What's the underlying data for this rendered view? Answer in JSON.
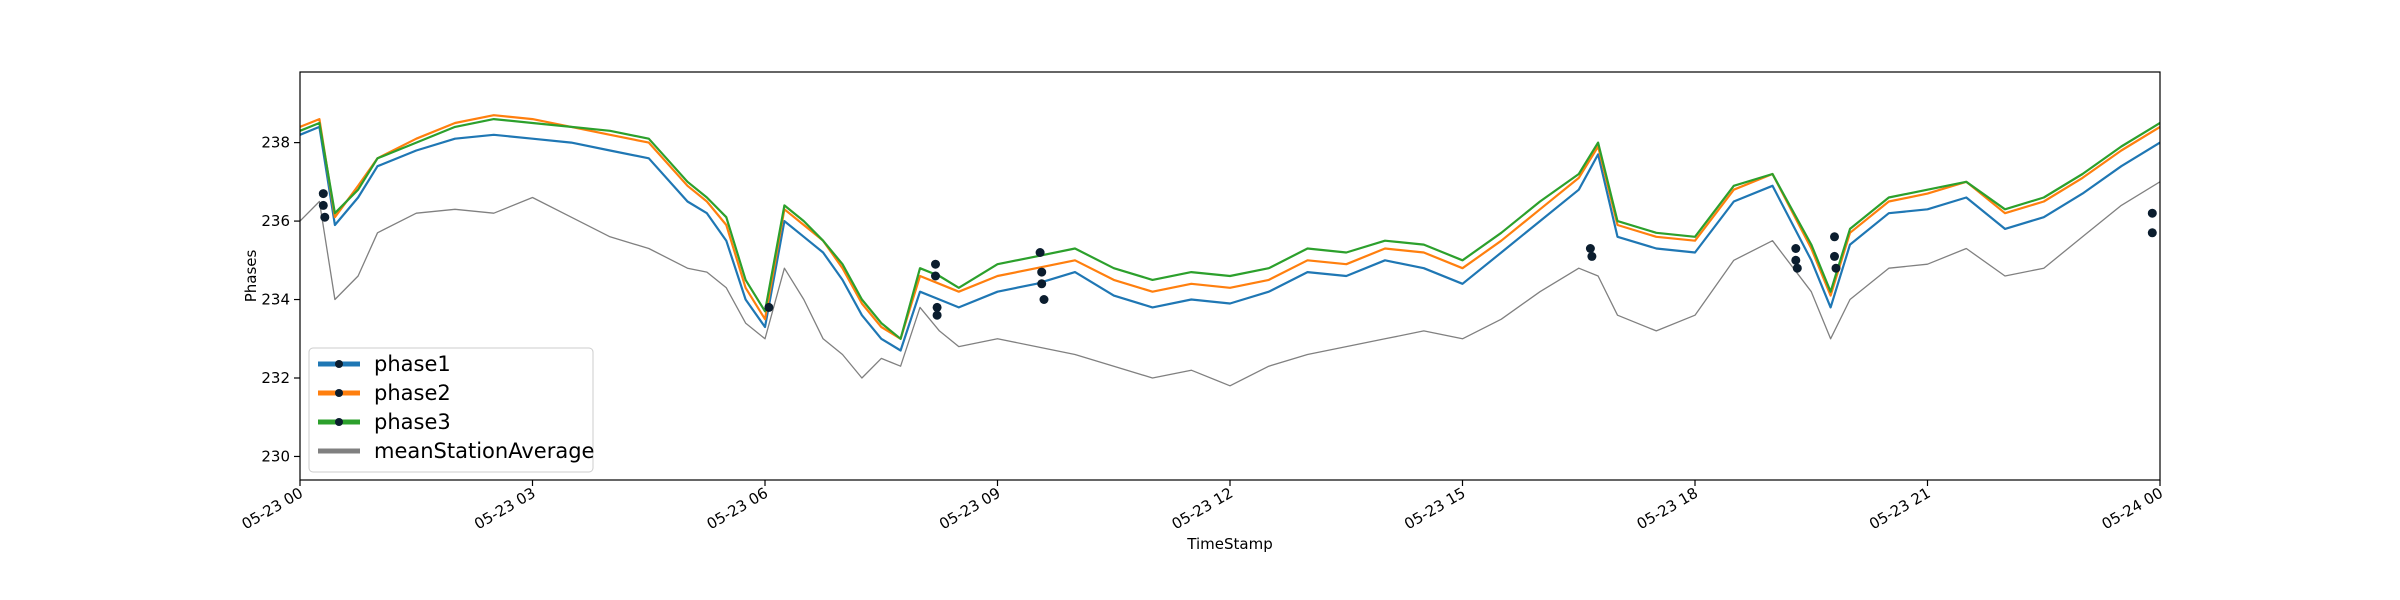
{
  "chart_data": {
    "type": "line",
    "title": "",
    "xlabel": "TimeStamp",
    "ylabel": "Phases",
    "x_range": [
      "05-23 00",
      "05-24 00"
    ],
    "ylim": [
      229.4,
      239.8
    ],
    "grid": false,
    "legend_position": "lower-left",
    "x_tick_labels": [
      "05-23 00",
      "05-23 03",
      "05-23 06",
      "05-23 09",
      "05-23 12",
      "05-23 15",
      "05-23 18",
      "05-23 21",
      "05-24 00"
    ],
    "x_tick_hours": [
      0,
      3,
      6,
      9,
      12,
      15,
      18,
      21,
      24
    ],
    "y_ticks": [
      230,
      232,
      234,
      236,
      238
    ],
    "x_hours": [
      0.0,
      0.25,
      0.45,
      0.75,
      1.0,
      1.5,
      2.0,
      2.5,
      3.0,
      3.5,
      4.0,
      4.5,
      5.0,
      5.25,
      5.5,
      5.75,
      6.0,
      6.25,
      6.5,
      6.75,
      7.0,
      7.25,
      7.5,
      7.75,
      8.0,
      8.25,
      8.5,
      9.0,
      9.5,
      10.0,
      10.5,
      11.0,
      11.5,
      12.0,
      12.5,
      13.0,
      13.5,
      14.0,
      14.5,
      15.0,
      15.5,
      16.0,
      16.5,
      16.75,
      17.0,
      17.5,
      18.0,
      18.5,
      19.0,
      19.5,
      19.75,
      20.0,
      20.5,
      21.0,
      21.5,
      22.0,
      22.5,
      23.0,
      23.5,
      24.0
    ],
    "series": [
      {
        "name": "phase1",
        "color": "#1f77b4",
        "values": [
          238.2,
          238.4,
          235.9,
          236.6,
          237.4,
          237.8,
          238.1,
          238.2,
          238.1,
          238.0,
          237.8,
          237.6,
          236.5,
          236.2,
          235.5,
          234.0,
          233.3,
          236.0,
          235.6,
          235.2,
          234.5,
          233.6,
          233.0,
          232.7,
          234.2,
          234.0,
          233.8,
          234.2,
          234.4,
          234.7,
          234.1,
          233.8,
          234.0,
          233.9,
          234.2,
          234.7,
          234.6,
          235.0,
          234.8,
          234.4,
          235.2,
          236.0,
          236.8,
          237.7,
          235.6,
          235.3,
          235.2,
          236.5,
          236.9,
          235.0,
          233.8,
          235.4,
          236.2,
          236.3,
          236.6,
          235.8,
          236.1,
          236.7,
          237.4,
          238.0
        ]
      },
      {
        "name": "phase2",
        "color": "#ff7f0e",
        "values": [
          238.4,
          238.6,
          236.1,
          236.9,
          237.6,
          238.1,
          238.5,
          238.7,
          238.6,
          238.4,
          238.2,
          238.0,
          236.9,
          236.5,
          235.9,
          234.3,
          233.5,
          236.3,
          235.9,
          235.5,
          234.8,
          233.9,
          233.3,
          233.0,
          234.6,
          234.4,
          234.2,
          234.6,
          234.8,
          235.0,
          234.5,
          234.2,
          234.4,
          234.3,
          234.5,
          235.0,
          234.9,
          235.3,
          235.2,
          234.8,
          235.5,
          236.3,
          237.1,
          237.9,
          235.9,
          235.6,
          235.5,
          236.8,
          237.2,
          235.3,
          234.1,
          235.7,
          236.5,
          236.7,
          237.0,
          236.2,
          236.5,
          237.1,
          237.8,
          238.4
        ]
      },
      {
        "name": "phase3",
        "color": "#2ca02c",
        "values": [
          238.3,
          238.5,
          236.2,
          236.8,
          237.6,
          238.0,
          238.4,
          238.6,
          238.5,
          238.4,
          238.3,
          238.1,
          237.0,
          236.6,
          236.1,
          234.5,
          233.7,
          236.4,
          236.0,
          235.5,
          234.9,
          234.0,
          233.4,
          233.0,
          234.8,
          234.6,
          234.3,
          234.9,
          235.1,
          235.3,
          234.8,
          234.5,
          234.7,
          234.6,
          234.8,
          235.3,
          235.2,
          235.5,
          235.4,
          235.0,
          235.7,
          236.5,
          237.2,
          238.0,
          236.0,
          235.7,
          235.6,
          236.9,
          237.2,
          235.4,
          234.2,
          235.8,
          236.6,
          236.8,
          237.0,
          236.3,
          236.6,
          237.2,
          237.9,
          238.5
        ]
      },
      {
        "name": "meanStationAverage",
        "color": "#808080",
        "values": [
          236.0,
          236.5,
          234.0,
          234.6,
          235.7,
          236.2,
          236.3,
          236.2,
          236.6,
          236.1,
          235.6,
          235.3,
          234.8,
          234.7,
          234.3,
          233.4,
          233.0,
          234.8,
          234.0,
          233.0,
          232.6,
          232.0,
          232.5,
          232.3,
          233.8,
          233.2,
          232.8,
          233.0,
          232.8,
          232.6,
          232.3,
          232.0,
          232.2,
          231.8,
          232.3,
          232.6,
          232.8,
          233.0,
          233.2,
          233.0,
          233.5,
          234.2,
          234.8,
          234.6,
          233.6,
          233.2,
          233.6,
          235.0,
          235.5,
          234.2,
          233.0,
          234.0,
          234.8,
          234.9,
          235.3,
          234.6,
          234.8,
          235.6,
          236.4,
          237.0
        ]
      }
    ],
    "markers": [
      {
        "x": 0.3,
        "y": 236.7
      },
      {
        "x": 0.3,
        "y": 236.4
      },
      {
        "x": 0.32,
        "y": 236.1
      },
      {
        "x": 6.05,
        "y": 233.8
      },
      {
        "x": 8.2,
        "y": 234.9
      },
      {
        "x": 8.2,
        "y": 234.6
      },
      {
        "x": 8.22,
        "y": 233.8
      },
      {
        "x": 8.22,
        "y": 233.6
      },
      {
        "x": 9.55,
        "y": 235.2
      },
      {
        "x": 9.57,
        "y": 234.7
      },
      {
        "x": 9.57,
        "y": 234.4
      },
      {
        "x": 9.6,
        "y": 234.0
      },
      {
        "x": 16.65,
        "y": 235.3
      },
      {
        "x": 16.67,
        "y": 235.1
      },
      {
        "x": 19.3,
        "y": 235.3
      },
      {
        "x": 19.3,
        "y": 235.0
      },
      {
        "x": 19.32,
        "y": 234.8
      },
      {
        "x": 19.8,
        "y": 235.6
      },
      {
        "x": 19.8,
        "y": 235.1
      },
      {
        "x": 19.82,
        "y": 234.8
      },
      {
        "x": 23.9,
        "y": 236.2
      },
      {
        "x": 23.9,
        "y": 235.7
      }
    ]
  }
}
